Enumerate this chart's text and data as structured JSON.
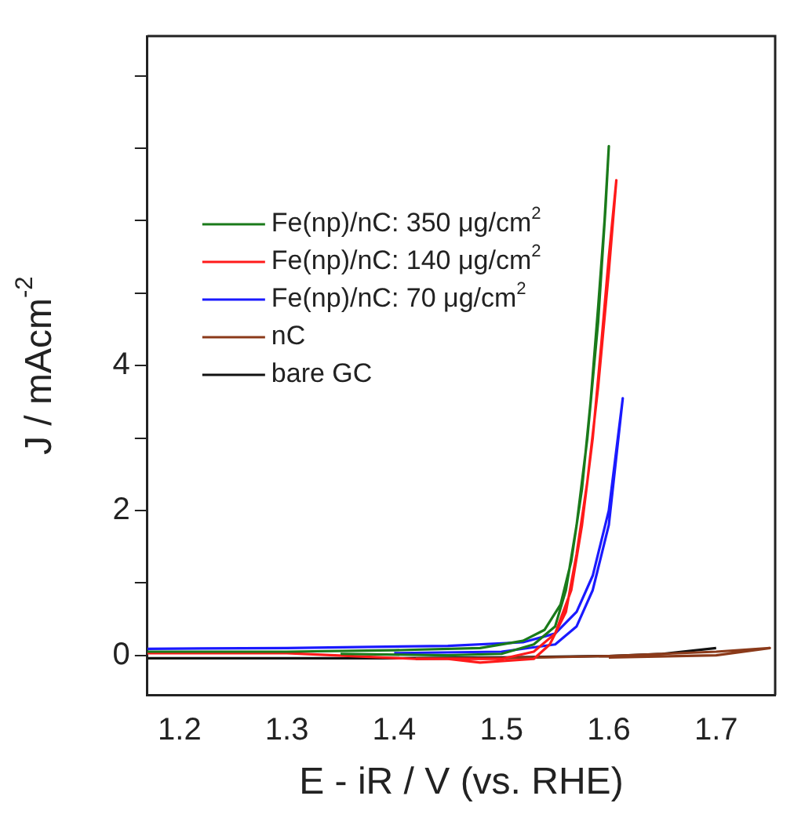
{
  "chart_data": {
    "type": "line",
    "xlabel": "E - iR / V (vs. RHE)",
    "ylabel": "J / mAcm$^{-2}$",
    "xlim": [
      1.17,
      1.755
    ],
    "xticks": [
      1.2,
      1.3,
      1.4,
      1.5,
      1.6,
      1.7
    ],
    "ylim": [
      -0.55,
      8.55
    ],
    "yticks": [
      0,
      {
        "value": 1,
        "label": null
      },
      2,
      {
        "value": 3,
        "label": null
      },
      4,
      {
        "value": 5,
        "label": null
      },
      {
        "value": 6,
        "label": null
      },
      {
        "value": 7,
        "label": null
      },
      {
        "value": 8,
        "label": null
      }
    ],
    "grid": false,
    "legend": "top left",
    "marker": "none",
    "line_style": "solid",
    "series": [
      {
        "name": "Fe(np)/nC: 350 μg/cm$^{2}$",
        "color": "#1a7a1a",
        "x": [
          1.17,
          1.3,
          1.4,
          1.48,
          1.52,
          1.54,
          1.555,
          1.565,
          1.575,
          1.583,
          1.59,
          1.596,
          1.6,
          1.597,
          1.59,
          1.58,
          1.57,
          1.56,
          1.55,
          1.53,
          1.5,
          1.45,
          1.35
        ],
        "values": [
          0.05,
          0.05,
          0.07,
          0.1,
          0.2,
          0.35,
          0.7,
          1.3,
          2.3,
          3.5,
          4.8,
          6,
          7.03,
          6.2,
          4.6,
          3.0,
          1.8,
          0.9,
          0.4,
          0.15,
          0.02,
          0.0,
          0.02
        ]
      },
      {
        "name": "Fe(np)/nC: 140 μg/cm$^{2}$",
        "color": "#ff1a1a",
        "x": [
          1.17,
          1.3,
          1.42,
          1.5,
          1.53,
          1.55,
          1.565,
          1.575,
          1.585,
          1.593,
          1.6,
          1.607,
          1.6,
          1.59,
          1.58,
          1.57,
          1.56,
          1.545,
          1.53,
          1.48,
          1.45
        ],
        "values": [
          0.03,
          0.03,
          -0.05,
          -0.05,
          0.05,
          0.3,
          0.9,
          1.8,
          3.0,
          4.3,
          5.5,
          6.56,
          5.3,
          3.7,
          2.4,
          1.4,
          0.6,
          0.15,
          -0.05,
          -0.1,
          -0.05
        ]
      },
      {
        "name": "Fe(np)/nC: 70 μg/cm$^{2}$",
        "color": "#1a1aff",
        "x": [
          1.17,
          1.3,
          1.45,
          1.52,
          1.55,
          1.57,
          1.585,
          1.6,
          1.613,
          1.6,
          1.585,
          1.57,
          1.55,
          1.5,
          1.4
        ],
        "values": [
          0.09,
          0.1,
          0.13,
          0.18,
          0.3,
          0.6,
          1.1,
          2.0,
          3.55,
          1.8,
          0.9,
          0.4,
          0.15,
          0.05,
          0.03
        ]
      },
      {
        "name": "nC",
        "color": "#8b3a1a",
        "x": [
          1.42,
          1.5,
          1.6,
          1.65,
          1.7,
          1.75,
          1.7,
          1.6
        ],
        "values": [
          -0.05,
          -0.04,
          -0.01,
          0.02,
          0.05,
          0.1,
          0.0,
          -0.03
        ]
      },
      {
        "name": "bare GC",
        "color": "#111111",
        "x": [
          1.17,
          1.4,
          1.5,
          1.6,
          1.65,
          1.7
        ],
        "values": [
          -0.04,
          -0.04,
          -0.03,
          -0.01,
          0.02,
          0.1
        ]
      }
    ]
  }
}
